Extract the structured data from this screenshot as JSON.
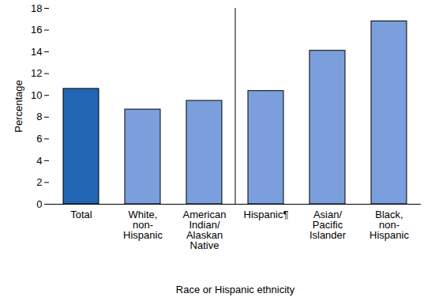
{
  "chart_data": {
    "type": "bar",
    "categories": [
      "Total",
      "White, non-Hispanic",
      "American Indian/Alaskan Native",
      "Hispanic¶",
      "Asian/Pacific Islander",
      "Black, non-Hispanic"
    ],
    "values": [
      10.6,
      8.7,
      9.5,
      10.4,
      14.1,
      16.8
    ],
    "colors": [
      "#2166b3",
      "#7b9fdc",
      "#7b9fdc",
      "#7b9fdc",
      "#7b9fdc",
      "#7b9fdc"
    ],
    "x_label": "Race or Hispanic ethnicity",
    "y_label": "Percentage",
    "ylim": [
      0,
      18
    ],
    "yticks": [
      0,
      2,
      4,
      6,
      8,
      10,
      12,
      14,
      16,
      18
    ],
    "grid": false
  }
}
